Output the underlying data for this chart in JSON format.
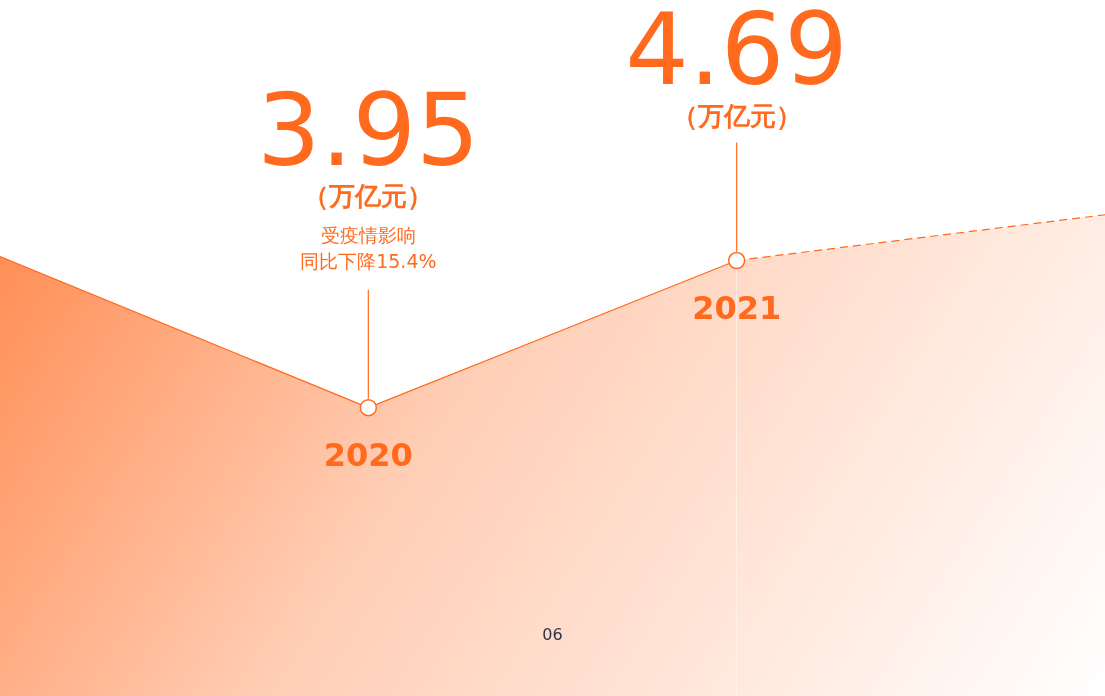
{
  "chart_data": {
    "type": "area",
    "categories": [
      null,
      "2020",
      "2021",
      null
    ],
    "legend": false,
    "marker": "circle",
    "series": [
      {
        "color": "#ff6a1f",
        "values": [
          4.71,
          3.95,
          4.69,
          null
        ],
        "value_labels": [
          null,
          "3.95",
          "4.69",
          null
        ],
        "line_style": "solid"
      },
      {
        "color": "#ff6a1f",
        "values": [
          null,
          null,
          4.69,
          4.92
        ],
        "line_style": "dashed",
        "marker": "none"
      }
    ],
    "annotations": [
      "（万亿元）",
      "受疫情影响",
      "同比下降15.4%",
      "（万亿元）",
      "06"
    ]
  }
}
